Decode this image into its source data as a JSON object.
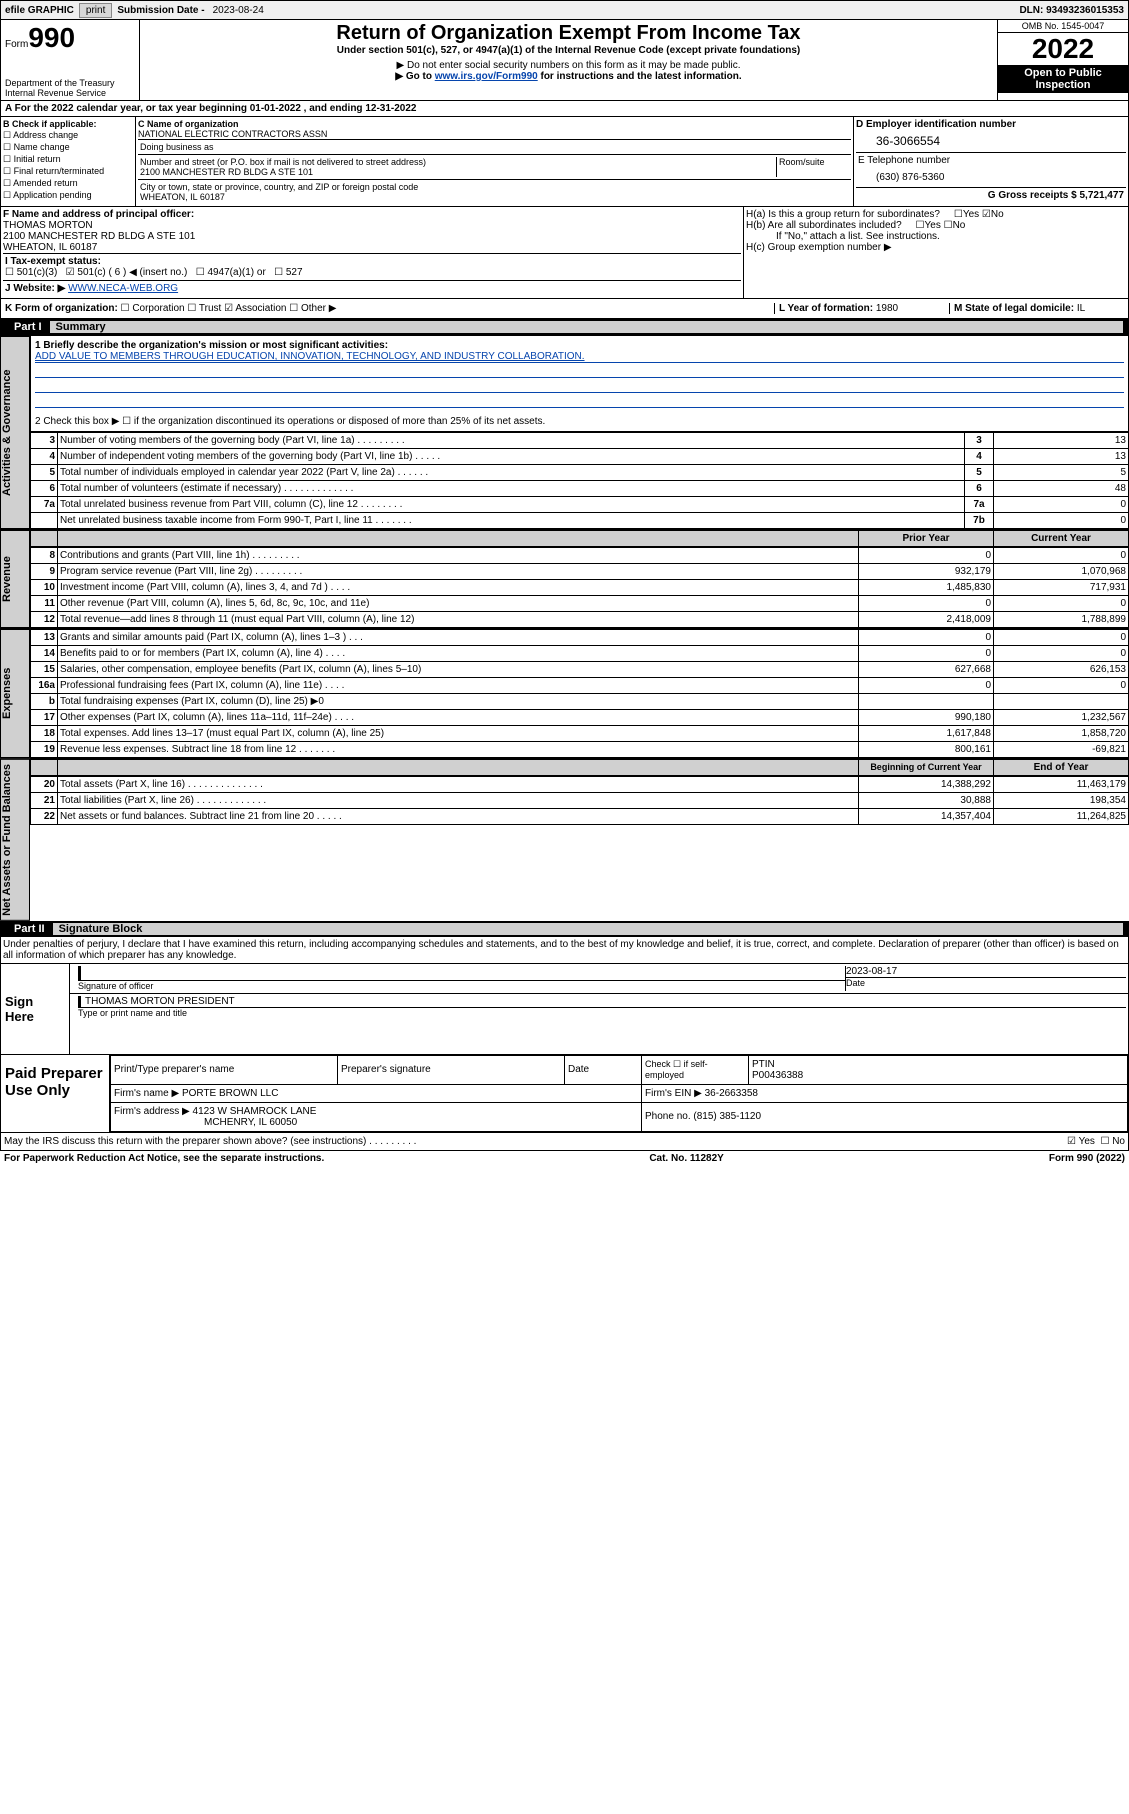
{
  "topbar": {
    "efile": "efile GRAPHIC",
    "print": "print",
    "subdate_label": "Submission Date - ",
    "subdate": "2023-08-24",
    "dln_label": "DLN: ",
    "dln": "93493236015353"
  },
  "header": {
    "form_prefix": "Form",
    "form_num": "990",
    "dept": "Department of the Treasury",
    "irs": "Internal Revenue Service",
    "title": "Return of Organization Exempt From Income Tax",
    "sub1": "Under section 501(c), 527, or 4947(a)(1) of the Internal Revenue Code (except private foundations)",
    "sub2": "▶ Do not enter social security numbers on this form as it may be made public.",
    "sub3_a": "▶ Go to ",
    "sub3_link": "www.irs.gov/Form990",
    "sub3_b": " for instructions and the latest information.",
    "omb": "OMB No. 1545-0047",
    "year": "2022",
    "inspect": "Open to Public Inspection"
  },
  "cal": "A For the 2022 calendar year, or tax year beginning 01-01-2022  , and ending 12-31-2022",
  "b": {
    "label": "B Check if applicable:",
    "items": [
      "Address change",
      "Name change",
      "Initial return",
      "Final return/terminated",
      "Amended return",
      "Application pending"
    ]
  },
  "c": {
    "name_label": "C Name of organization",
    "name": "NATIONAL ELECTRIC CONTRACTORS ASSN",
    "dba": "Doing business as",
    "street_label": "Number and street (or P.O. box if mail is not delivered to street address)",
    "room": "Room/suite",
    "street": "2100 MANCHESTER RD BLDG A STE 101",
    "city_label": "City or town, state or province, country, and ZIP or foreign postal code",
    "city": "WHEATON, IL  60187"
  },
  "d": {
    "label": "D Employer identification number",
    "ein": "36-3066554"
  },
  "e": {
    "label": "E Telephone number",
    "tel": "(630) 876-5360"
  },
  "g": {
    "label": "G Gross receipts $ ",
    "val": "5,721,477"
  },
  "f": {
    "label": "F Name and address of principal officer:",
    "name": "THOMAS MORTON",
    "addr": "2100 MANCHESTER RD BLDG A STE 101",
    "city": "WHEATON, IL  60187"
  },
  "h": {
    "a": "H(a)  Is this a group return for subordinates?",
    "b": "H(b)  Are all subordinates included?",
    "b2": "If \"No,\" attach a list. See instructions.",
    "c": "H(c)  Group exemption number ▶"
  },
  "i": {
    "label": "I  Tax-exempt status:",
    "c3": "501(c)(3)",
    "c": "501(c) ( 6 ) ◀ (insert no.)",
    "a1": "4947(a)(1) or",
    "s527": "527"
  },
  "j": {
    "label": "J  Website: ▶ ",
    "url": "WWW.NECA-WEB.ORG"
  },
  "k": {
    "label": "K Form of organization:",
    "opts": [
      "Corporation",
      "Trust",
      "Association",
      "Other ▶"
    ]
  },
  "l": {
    "label": "L Year of formation: ",
    "val": "1980"
  },
  "m": {
    "label": "M State of legal domicile: ",
    "val": "IL"
  },
  "part1": "Part I",
  "part1t": "Summary",
  "part2": "Part II",
  "part2t": "Signature Block",
  "mission_label": "1  Briefly describe the organization's mission or most significant activities:",
  "mission": "ADD VALUE TO MEMBERS THROUGH EDUCATION, INNOVATION, TECHNOLOGY, AND INDUSTRY COLLABORATION.",
  "line2": "2  Check this box ▶ ☐  if the organization discontinued its operations or disposed of more than 25% of its net assets.",
  "gov": [
    {
      "n": "3",
      "t": "Number of voting members of the governing body (Part VI, line 1a)   .    .    .    .    .    .    .    .    .",
      "c": "3",
      "v": "13"
    },
    {
      "n": "4",
      "t": "Number of independent voting members of the governing body (Part VI, line 1b)   .    .    .    .    .",
      "c": "4",
      "v": "13"
    },
    {
      "n": "5",
      "t": "Total number of individuals employed in calendar year 2022 (Part V, line 2a)   .    .    .    .    .    .",
      "c": "5",
      "v": "5"
    },
    {
      "n": "6",
      "t": "Total number of volunteers (estimate if necessary)   .    .    .    .    .    .    .    .    .    .    .    .    .",
      "c": "6",
      "v": "48"
    },
    {
      "n": "7a",
      "t": "Total unrelated business revenue from Part VIII, column (C), line 12   .    .    .    .    .    .    .    .",
      "c": "7a",
      "v": "0"
    },
    {
      "n": "",
      "t": "Net unrelated business taxable income from Form 990-T, Part I, line 11   .    .    .    .    .    .    .",
      "c": "7b",
      "v": "0"
    }
  ],
  "hdr_prior": "Prior Year",
  "hdr_curr": "Current Year",
  "rev": [
    {
      "n": "8",
      "t": "Contributions and grants (Part VIII, line 1h)   .    .    .    .    .    .    .    .    .",
      "p": "0",
      "c": "0"
    },
    {
      "n": "9",
      "t": "Program service revenue (Part VIII, line 2g)   .    .    .    .    .    .    .    .    .",
      "p": "932,179",
      "c": "1,070,968"
    },
    {
      "n": "10",
      "t": "Investment income (Part VIII, column (A), lines 3, 4, and 7d )   .    .    .    .",
      "p": "1,485,830",
      "c": "717,931"
    },
    {
      "n": "11",
      "t": "Other revenue (Part VIII, column (A), lines 5, 6d, 8c, 9c, 10c, and 11e)",
      "p": "0",
      "c": "0"
    },
    {
      "n": "12",
      "t": "Total revenue—add lines 8 through 11 (must equal Part VIII, column (A), line 12)",
      "p": "2,418,009",
      "c": "1,788,899"
    }
  ],
  "exp": [
    {
      "n": "13",
      "t": "Grants and similar amounts paid (Part IX, column (A), lines 1–3 )   .    .    .",
      "p": "0",
      "c": "0"
    },
    {
      "n": "14",
      "t": "Benefits paid to or for members (Part IX, column (A), line 4)   .    .    .    .",
      "p": "0",
      "c": "0"
    },
    {
      "n": "15",
      "t": "Salaries, other compensation, employee benefits (Part IX, column (A), lines 5–10)",
      "p": "627,668",
      "c": "626,153"
    },
    {
      "n": "16a",
      "t": "Professional fundraising fees (Part IX, column (A), line 11e)   .    .    .    .",
      "p": "0",
      "c": "0"
    },
    {
      "n": "b",
      "t": "Total fundraising expenses (Part IX, column (D), line 25) ▶0",
      "p": "",
      "c": "",
      "shaded": true
    },
    {
      "n": "17",
      "t": "Other expenses (Part IX, column (A), lines 11a–11d, 11f–24e)   .    .    .    .",
      "p": "990,180",
      "c": "1,232,567"
    },
    {
      "n": "18",
      "t": "Total expenses. Add lines 13–17 (must equal Part IX, column (A), line 25)",
      "p": "1,617,848",
      "c": "1,858,720"
    },
    {
      "n": "19",
      "t": "Revenue less expenses. Subtract line 18 from line 12   .    .    .    .    .    .    .",
      "p": "800,161",
      "c": "-69,821"
    }
  ],
  "hdr_begin": "Beginning of Current Year",
  "hdr_end": "End of Year",
  "net": [
    {
      "n": "20",
      "t": "Total assets (Part X, line 16)   .    .    .    .    .    .    .    .    .    .    .    .    .    .",
      "p": "14,388,292",
      "c": "11,463,179"
    },
    {
      "n": "21",
      "t": "Total liabilities (Part X, line 26)   .    .    .    .    .    .    .    .    .    .    .    .    .",
      "p": "30,888",
      "c": "198,354"
    },
    {
      "n": "22",
      "t": "Net assets or fund balances. Subtract line 21 from line 20   .    .    .    .    .",
      "p": "14,357,404",
      "c": "11,264,825"
    }
  ],
  "sig_decl": "Under penalties of perjury, I declare that I have examined this return, including accompanying schedules and statements, and to the best of my knowledge and belief, it is true, correct, and complete. Declaration of preparer (other than officer) is based on all information of which preparer has any knowledge.",
  "sign_here": "Sign Here",
  "sig_officer": "Signature of officer",
  "sig_date_label": "Date",
  "sig_date": "2023-08-17",
  "sig_name": "THOMAS MORTON  PRESIDENT",
  "sig_name_label": "Type or print name and title",
  "paid": "Paid Preparer Use Only",
  "paid_hdr": [
    "Print/Type preparer's name",
    "Preparer's signature",
    "Date"
  ],
  "paid_check": "Check ☐ if self-employed",
  "ptin_label": "PTIN",
  "ptin": "P00436388",
  "firm_name_label": "Firm's name    ▶ ",
  "firm_name": "PORTE BROWN LLC",
  "firm_ein_label": "Firm's EIN ▶ ",
  "firm_ein": "36-2663358",
  "firm_addr_label": "Firm's address ▶ ",
  "firm_addr": "4123 W SHAMROCK LANE",
  "firm_city": "MCHENRY, IL  60050",
  "firm_phone_label": "Phone no. ",
  "firm_phone": "(815) 385-1120",
  "discuss": "May the IRS discuss this return with the preparer shown above? (see instructions)    .    .    .    .    .    .    .    .    .",
  "footer_l": "For Paperwork Reduction Act Notice, see the separate instructions.",
  "footer_m": "Cat. No. 11282Y",
  "footer_r": "Form 990 (2022)",
  "sidecols": {
    "gov": "Activities & Governance",
    "rev": "Revenue",
    "exp": "Expenses",
    "net": "Net Assets or Fund Balances"
  }
}
